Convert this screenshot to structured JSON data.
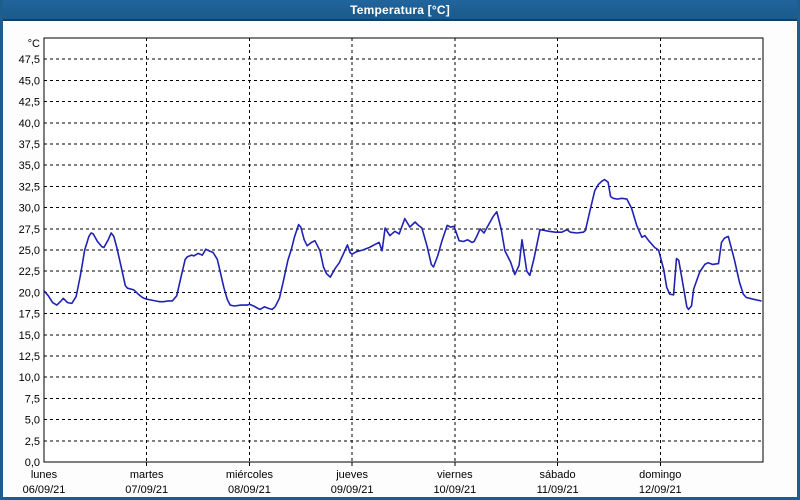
{
  "window": {
    "title": "Temperatura [°C]"
  },
  "colors": {
    "titlebar_bg": "#1d5e8f",
    "titlebar_text": "#ffffff",
    "frame": "#1d5e8f",
    "plot_bg": "#ffffff",
    "grid": "#000000",
    "text": "#000000",
    "line": "#2222b2"
  },
  "chart_data": {
    "type": "line",
    "title": "Temperatura [°C]",
    "unit_label": "°C",
    "ylabel": "°C",
    "ylim": [
      0,
      50
    ],
    "ytick_step": 2.5,
    "ytick_labels": [
      "0,0",
      "2,5",
      "5,0",
      "7,5",
      "10,0",
      "12,5",
      "15,0",
      "17,5",
      "20,0",
      "22,5",
      "25,0",
      "27,5",
      "30,0",
      "32,5",
      "35,0",
      "37,5",
      "40,0",
      "42,5",
      "45,0",
      "47,5"
    ],
    "grid": "dashed",
    "legend_position": "none",
    "xlim_hours": [
      0,
      168
    ],
    "days": [
      {
        "name": "lunes",
        "date": "06/09/21"
      },
      {
        "name": "martes",
        "date": "07/09/21"
      },
      {
        "name": "miércoles",
        "date": "08/09/21"
      },
      {
        "name": "jueves",
        "date": "09/09/21"
      },
      {
        "name": "viernes",
        "date": "10/09/21"
      },
      {
        "name": "sábado",
        "date": "11/09/21"
      },
      {
        "name": "domingo",
        "date": "12/09/21"
      }
    ],
    "series": [
      {
        "name": "Temperatura",
        "color": "#2222b2",
        "points": [
          [
            0,
            20.2
          ],
          [
            1,
            19.6
          ],
          [
            2,
            18.8
          ],
          [
            3,
            18.5
          ],
          [
            4,
            19.0
          ],
          [
            4.5,
            19.3
          ],
          [
            5.5,
            18.8
          ],
          [
            6.5,
            18.7
          ],
          [
            7.5,
            19.5
          ],
          [
            8.5,
            22.0
          ],
          [
            9.5,
            25.0
          ],
          [
            10.5,
            26.6
          ],
          [
            11,
            27.0
          ],
          [
            11.5,
            26.9
          ],
          [
            12.5,
            26.0
          ],
          [
            13.5,
            25.4
          ],
          [
            14,
            25.3
          ],
          [
            15,
            26.2
          ],
          [
            15.7,
            27.0
          ],
          [
            16.3,
            26.6
          ],
          [
            17,
            25.3
          ],
          [
            18,
            23.1
          ],
          [
            19,
            20.8
          ],
          [
            19.5,
            20.5
          ],
          [
            21,
            20.3
          ],
          [
            22,
            19.8
          ],
          [
            23,
            19.4
          ],
          [
            24,
            19.2
          ],
          [
            25,
            19.1
          ],
          [
            26,
            19.0
          ],
          [
            27,
            18.9
          ],
          [
            28,
            18.9
          ],
          [
            29,
            19.0
          ],
          [
            30,
            19.0
          ],
          [
            31,
            19.6
          ],
          [
            32,
            21.8
          ],
          [
            33,
            23.9
          ],
          [
            33.5,
            24.2
          ],
          [
            34.5,
            24.4
          ],
          [
            35,
            24.3
          ],
          [
            36,
            24.6
          ],
          [
            37,
            24.4
          ],
          [
            37.8,
            25.1
          ],
          [
            38.5,
            24.9
          ],
          [
            39.5,
            24.7
          ],
          [
            40.5,
            23.9
          ],
          [
            41,
            22.8
          ],
          [
            42,
            20.6
          ],
          [
            42.8,
            19.2
          ],
          [
            43.5,
            18.5
          ],
          [
            44.5,
            18.4
          ],
          [
            46,
            18.5
          ],
          [
            47.5,
            18.5
          ],
          [
            48,
            18.6
          ],
          [
            49,
            18.4
          ],
          [
            50,
            18.1
          ],
          [
            50.5,
            18.0
          ],
          [
            51.5,
            18.3
          ],
          [
            52.5,
            18.1
          ],
          [
            53.3,
            18.0
          ],
          [
            54,
            18.3
          ],
          [
            55,
            19.3
          ],
          [
            56,
            21.5
          ],
          [
            57,
            23.8
          ],
          [
            57.8,
            25.1
          ],
          [
            58.5,
            26.5
          ],
          [
            59.5,
            28.0
          ],
          [
            60,
            27.7
          ],
          [
            60.8,
            26.2
          ],
          [
            61.5,
            25.5
          ],
          [
            62.5,
            25.9
          ],
          [
            63.3,
            26.1
          ],
          [
            64.5,
            24.9
          ],
          [
            65.3,
            23.0
          ],
          [
            66,
            22.2
          ],
          [
            66.9,
            21.8
          ],
          [
            68,
            22.8
          ],
          [
            69,
            23.5
          ],
          [
            70,
            24.6
          ],
          [
            70.9,
            25.6
          ],
          [
            71.5,
            24.7
          ],
          [
            72,
            24.5
          ],
          [
            73,
            24.8
          ],
          [
            74.5,
            25.0
          ],
          [
            76,
            25.3
          ],
          [
            77.5,
            25.7
          ],
          [
            78.3,
            25.9
          ],
          [
            79,
            24.9
          ],
          [
            79.7,
            27.6
          ],
          [
            80.8,
            26.7
          ],
          [
            82,
            27.2
          ],
          [
            83,
            26.9
          ],
          [
            84.3,
            28.7
          ],
          [
            85.5,
            27.7
          ],
          [
            86.7,
            28.3
          ],
          [
            87.5,
            27.9
          ],
          [
            88.3,
            27.6
          ],
          [
            89.5,
            25.5
          ],
          [
            90.5,
            23.3
          ],
          [
            91,
            23.0
          ],
          [
            92,
            24.3
          ],
          [
            93,
            26.1
          ],
          [
            94.2,
            27.9
          ],
          [
            95,
            27.7
          ],
          [
            95.8,
            27.8
          ],
          [
            96.5,
            26.8
          ],
          [
            97,
            26.1
          ],
          [
            98,
            26.0
          ],
          [
            99,
            26.2
          ],
          [
            100,
            25.9
          ],
          [
            100.5,
            26.0
          ],
          [
            101,
            26.5
          ],
          [
            101.9,
            27.5
          ],
          [
            102.8,
            27.0
          ],
          [
            103.8,
            27.9
          ],
          [
            105,
            29.0
          ],
          [
            105.8,
            29.5
          ],
          [
            106.8,
            27.5
          ],
          [
            107.7,
            24.9
          ],
          [
            109,
            23.6
          ],
          [
            110,
            22.1
          ],
          [
            111,
            23.2
          ],
          [
            111.7,
            26.2
          ],
          [
            112.8,
            22.5
          ],
          [
            113.5,
            22.0
          ],
          [
            114.5,
            24.0
          ],
          [
            115.9,
            27.4
          ],
          [
            117,
            27.3
          ],
          [
            118,
            27.2
          ],
          [
            119.5,
            27.1
          ],
          [
            121,
            27.1
          ],
          [
            122.2,
            27.4
          ],
          [
            123,
            27.1
          ],
          [
            124.5,
            27.0
          ],
          [
            126,
            27.1
          ],
          [
            126.5,
            27.3
          ],
          [
            127.5,
            29.5
          ],
          [
            128.7,
            32.0
          ],
          [
            129.5,
            32.7
          ],
          [
            130.3,
            33.1
          ],
          [
            131,
            33.3
          ],
          [
            131.8,
            33.0
          ],
          [
            132.4,
            31.3
          ],
          [
            133,
            31.1
          ],
          [
            134,
            31.0
          ],
          [
            135,
            31.1
          ],
          [
            136.2,
            31.0
          ],
          [
            137.3,
            29.9
          ],
          [
            138.5,
            27.9
          ],
          [
            139.7,
            26.5
          ],
          [
            140.4,
            26.7
          ],
          [
            141.3,
            26.1
          ],
          [
            142.7,
            25.3
          ],
          [
            143.6,
            25.0
          ],
          [
            144.8,
            22.7
          ],
          [
            145.5,
            20.6
          ],
          [
            146.2,
            19.8
          ],
          [
            147.1,
            19.7
          ],
          [
            147.8,
            24.0
          ],
          [
            148.3,
            23.8
          ],
          [
            149,
            21.8
          ],
          [
            150.2,
            18.3
          ],
          [
            150.6,
            18.0
          ],
          [
            151.3,
            18.4
          ],
          [
            151.8,
            20.4
          ],
          [
            153.2,
            22.4
          ],
          [
            154.4,
            23.3
          ],
          [
            155.2,
            23.5
          ],
          [
            156.2,
            23.3
          ],
          [
            157.6,
            23.4
          ],
          [
            158.3,
            25.9
          ],
          [
            159,
            26.4
          ],
          [
            159.9,
            26.6
          ],
          [
            161.3,
            23.9
          ],
          [
            162.5,
            21.2
          ],
          [
            163.4,
            19.8
          ],
          [
            164.1,
            19.4
          ],
          [
            165.7,
            19.2
          ],
          [
            167.5,
            19.0
          ]
        ]
      }
    ]
  }
}
